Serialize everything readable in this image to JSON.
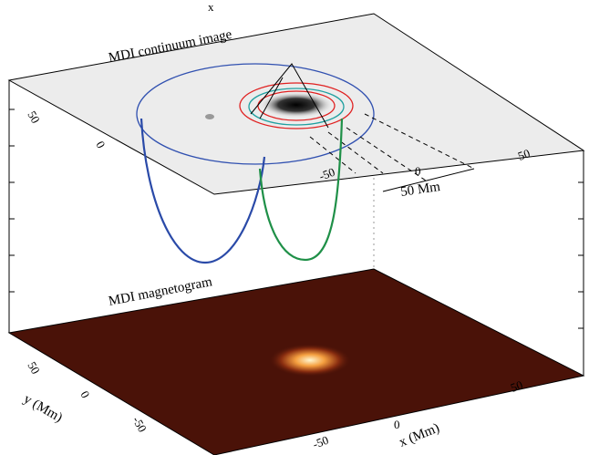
{
  "figure": {
    "top_label": "x",
    "upper_panel": {
      "title": "MDI continuum image",
      "scale_label": "50 Mm",
      "y_ticks": [
        "50",
        "0"
      ],
      "x_ticks": [
        "-50",
        "0"
      ],
      "right_ticks": [
        "50"
      ]
    },
    "lower_panel": {
      "title": "MDI magnetogram",
      "y_ticks": [
        "50",
        "0",
        "-50"
      ],
      "x_ticks": [
        "-50",
        "0"
      ],
      "right_ticks": [
        "50"
      ],
      "x_label": "x (Mm)",
      "y_label": "y (Mm)"
    }
  }
}
